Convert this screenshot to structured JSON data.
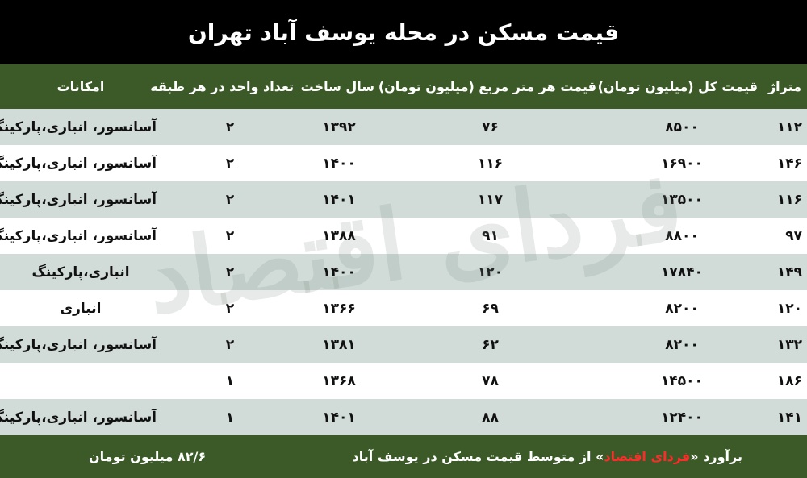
{
  "title": "قیمت مسکن در محله یوسف آباد تهران",
  "watermark": "فردای اقتصاد",
  "headers": [
    "متراژ",
    "قیمت کل (میلیون تومان)",
    "قیمت هر متر مربع (میلیون تومان)",
    "سال ساخت",
    "تعداد واحد در هر طبقه",
    "امکانات"
  ],
  "rows": [
    [
      "۱۱۲",
      "۸۵۰۰",
      "۷۶",
      "۱۳۹۲",
      "۲",
      "آسانسور، انباری،پارکینگ"
    ],
    [
      "۱۴۶",
      "۱۶۹۰۰",
      "۱۱۶",
      "۱۴۰۰",
      "۲",
      "آسانسور، انباری،پارکینگ"
    ],
    [
      "۱۱۶",
      "۱۳۵۰۰",
      "۱۱۷",
      "۱۴۰۱",
      "۲",
      "آسانسور، انباری،پارکینگ"
    ],
    [
      "۹۷",
      "۸۸۰۰",
      "۹۱",
      "۱۳۸۸",
      "۲",
      "آسانسور، انباری،پارکینگ"
    ],
    [
      "۱۴۹",
      "۱۷۸۴۰",
      "۱۲۰",
      "۱۴۰۰",
      "۲",
      "انباری،پارکینگ"
    ],
    [
      "۱۲۰",
      "۸۲۰۰",
      "۶۹",
      "۱۳۶۶",
      "۲",
      "انباری"
    ],
    [
      "۱۳۲",
      "۸۲۰۰",
      "۶۲",
      "۱۳۸۱",
      "۲",
      "آسانسور، انباری،پارکینگ"
    ],
    [
      "۱۸۶",
      "۱۴۵۰۰",
      "۷۸",
      "۱۳۶۸",
      "۱",
      ""
    ],
    [
      "۱۴۱",
      "۱۲۴۰۰",
      "۸۸",
      "۱۴۰۱",
      "۱",
      "آسانسور، انباری،پارکینگ"
    ]
  ],
  "footer": {
    "prefix": "برآورد «",
    "brand": "فردای اقتصاد",
    "suffix": "» از متوسط قیمت مسکن در یوسف آباد",
    "value": "۸۲/۶ میلیون تومان"
  },
  "colors": {
    "header_bg": "#3b5a27",
    "title_bg": "#000000",
    "row_alt": "#cfdad6",
    "brand": "#ff2a2a"
  }
}
